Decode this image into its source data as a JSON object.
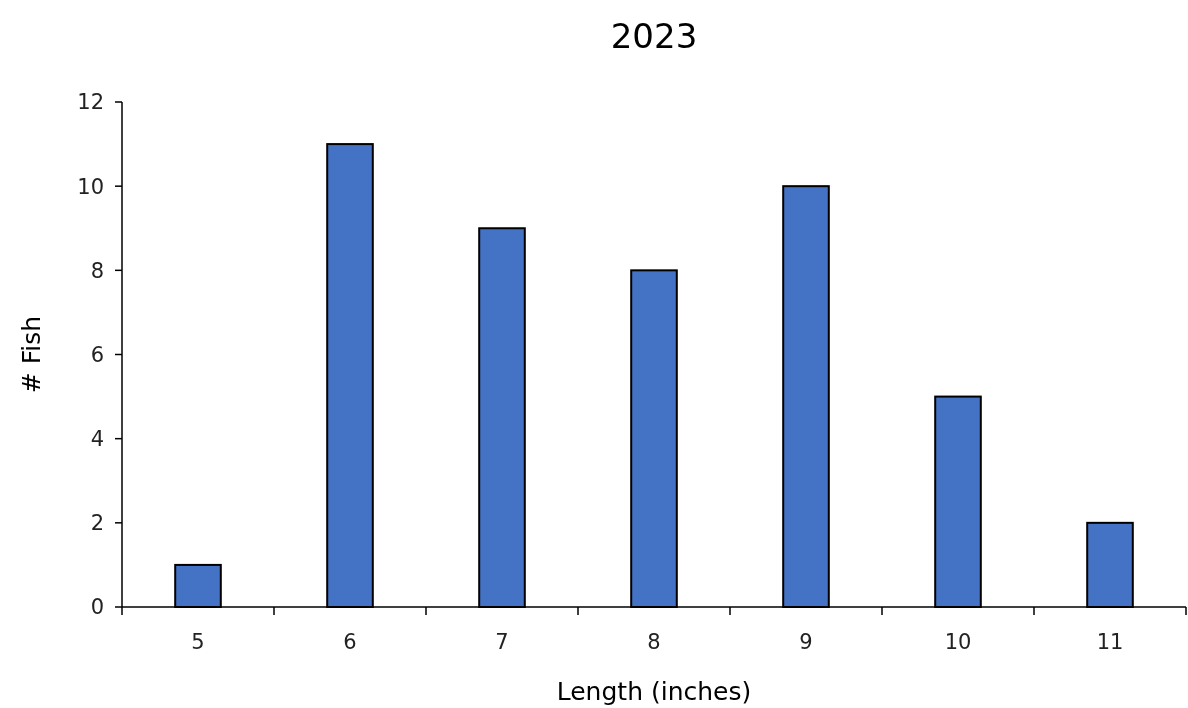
{
  "chart_data": {
    "type": "bar",
    "title": "2023",
    "xlabel": "Length (inches)",
    "ylabel": "# Fish",
    "categories": [
      "5",
      "6",
      "7",
      "8",
      "9",
      "10",
      "11"
    ],
    "values": [
      1,
      11,
      9,
      8,
      10,
      5,
      2
    ],
    "color": "#4472c4",
    "ylim": [
      0,
      12
    ],
    "yticks": [
      0,
      2,
      4,
      6,
      8,
      10,
      12
    ],
    "grid": false
  }
}
